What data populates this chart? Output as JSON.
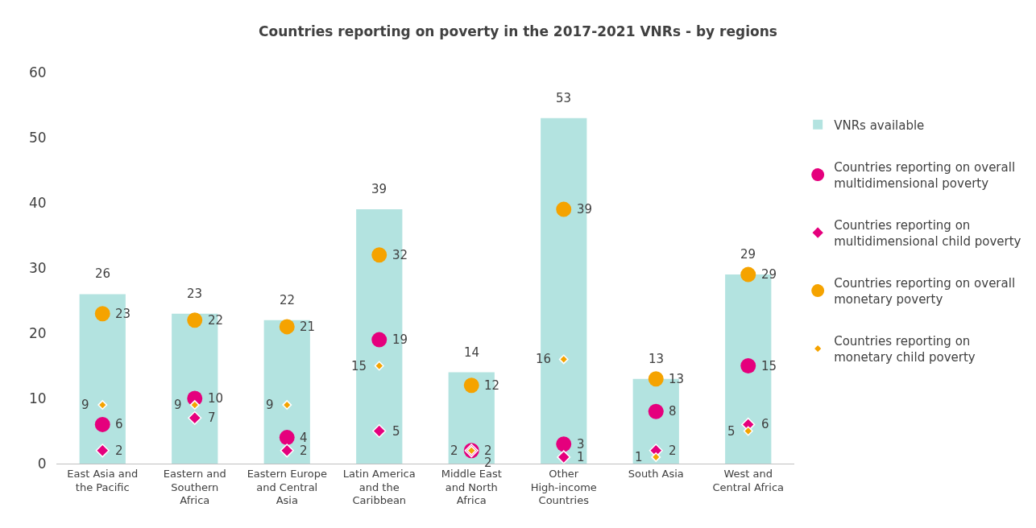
{
  "chart_data": {
    "type": "bar",
    "title": "Countries reporting on poverty in the 2017-2021 VNRs - by regions",
    "categories": [
      "East Asia and the Pacific",
      "Eastern and Southern Africa",
      "Eastern Europe and Central Asia",
      "Latin America and the Caribbean",
      "Middle East and North Africa",
      "Other High-income Countries",
      "South Asia",
      "West and Central Africa"
    ],
    "series": [
      {
        "name": "VNRs available",
        "color": "#b3e3e0",
        "values": [
          26,
          23,
          22,
          39,
          14,
          53,
          13,
          29
        ]
      },
      {
        "name": "Countries reporting on overall multidimensional poverty",
        "type": "scatter",
        "marker": "circle",
        "color": "#e5007d",
        "values": [
          6,
          10,
          4,
          19,
          2,
          3,
          8,
          15
        ]
      },
      {
        "name": "Countries reporting on multidimensional child poverty",
        "type": "scatter",
        "marker": "diamond",
        "color": "#e5007d",
        "values": [
          2,
          7,
          2,
          5,
          2,
          1,
          2,
          6
        ]
      },
      {
        "name": "Countries reporting on overall monetary poverty",
        "type": "scatter",
        "marker": "circle",
        "color": "#f5a300",
        "values": [
          23,
          22,
          21,
          32,
          12,
          39,
          13,
          29
        ]
      },
      {
        "name": "Countries reporting on monetary child poverty",
        "type": "scatter",
        "marker": "diamond",
        "color": "#f5a300",
        "values": [
          9,
          9,
          9,
          15,
          2,
          16,
          1,
          5
        ]
      }
    ],
    "ylim": [
      0,
      60
    ],
    "yticks": [
      0,
      10,
      20,
      30,
      40,
      50,
      60
    ],
    "grid": false,
    "legend": "right",
    "data_labels": true
  }
}
